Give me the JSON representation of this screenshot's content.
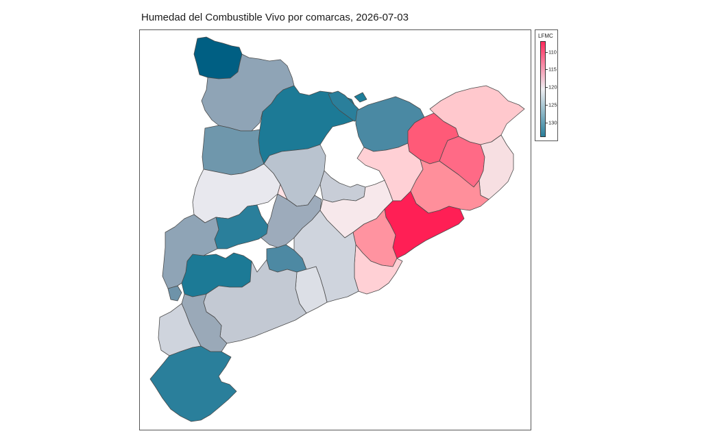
{
  "map": {
    "title": "Humedad del Combustible Vivo por comarcas, 2026-07-03"
  },
  "legend": {
    "title": "LFMC",
    "min": 107,
    "max": 134,
    "ticks": [
      {
        "value": 110,
        "label": "110"
      },
      {
        "value": 115,
        "label": "115"
      },
      {
        "value": 120,
        "label": "120"
      },
      {
        "value": 125,
        "label": "125"
      },
      {
        "value": 130,
        "label": "130"
      }
    ],
    "colors": {
      "low": "#ff2a5c",
      "mid": "#f0f0f3",
      "high": "#2a7f9b"
    }
  },
  "regions": [
    {
      "id": "r01",
      "fill": "#005f83"
    },
    {
      "id": "r02",
      "fill": "#8fa4b6"
    },
    {
      "id": "r03",
      "fill": "#1c7a96"
    },
    {
      "id": "r04",
      "fill": "#2a7f9b"
    },
    {
      "id": "r05",
      "fill": "#6f97ac"
    },
    {
      "id": "r06",
      "fill": "#1d7d99"
    },
    {
      "id": "r07",
      "fill": "#4a89a3"
    },
    {
      "id": "r08",
      "fill": "#ff5a78"
    },
    {
      "id": "r09",
      "fill": "#ffc8cd"
    },
    {
      "id": "r10",
      "fill": "#ff6a86"
    },
    {
      "id": "r11",
      "fill": "#f7dfe2"
    },
    {
      "id": "r12",
      "fill": "#e8e8ee"
    },
    {
      "id": "r13",
      "fill": "#b9c3cf"
    },
    {
      "id": "r14",
      "fill": "#ffd0d5"
    },
    {
      "id": "r15",
      "fill": "#ff8f9b"
    },
    {
      "id": "r16",
      "fill": "#c8cdd7"
    },
    {
      "id": "r17",
      "fill": "#f7e8eb"
    },
    {
      "id": "r18",
      "fill": "#9dabbb"
    },
    {
      "id": "r19",
      "fill": "#2a7f9b"
    },
    {
      "id": "r20",
      "fill": "#ff1f55"
    },
    {
      "id": "r21",
      "fill": "#ff93a0"
    },
    {
      "id": "r22",
      "fill": "#ffd0d5"
    },
    {
      "id": "r23",
      "fill": "#1c7a96"
    },
    {
      "id": "r24",
      "fill": "#6e93a9"
    },
    {
      "id": "r25",
      "fill": "#4d89a3"
    },
    {
      "id": "r26",
      "fill": "#cfd4dd"
    },
    {
      "id": "r27",
      "fill": "#dcdfe6"
    },
    {
      "id": "r28",
      "fill": "#8fa4b6"
    },
    {
      "id": "r29",
      "fill": "#c3c9d3"
    },
    {
      "id": "r30",
      "fill": "#9aa9b8"
    },
    {
      "id": "r31",
      "fill": "#cfd4dd"
    },
    {
      "id": "r32",
      "fill": "#2a7f9b"
    },
    {
      "id": "r33",
      "fill": "#ffe2e5"
    }
  ]
}
